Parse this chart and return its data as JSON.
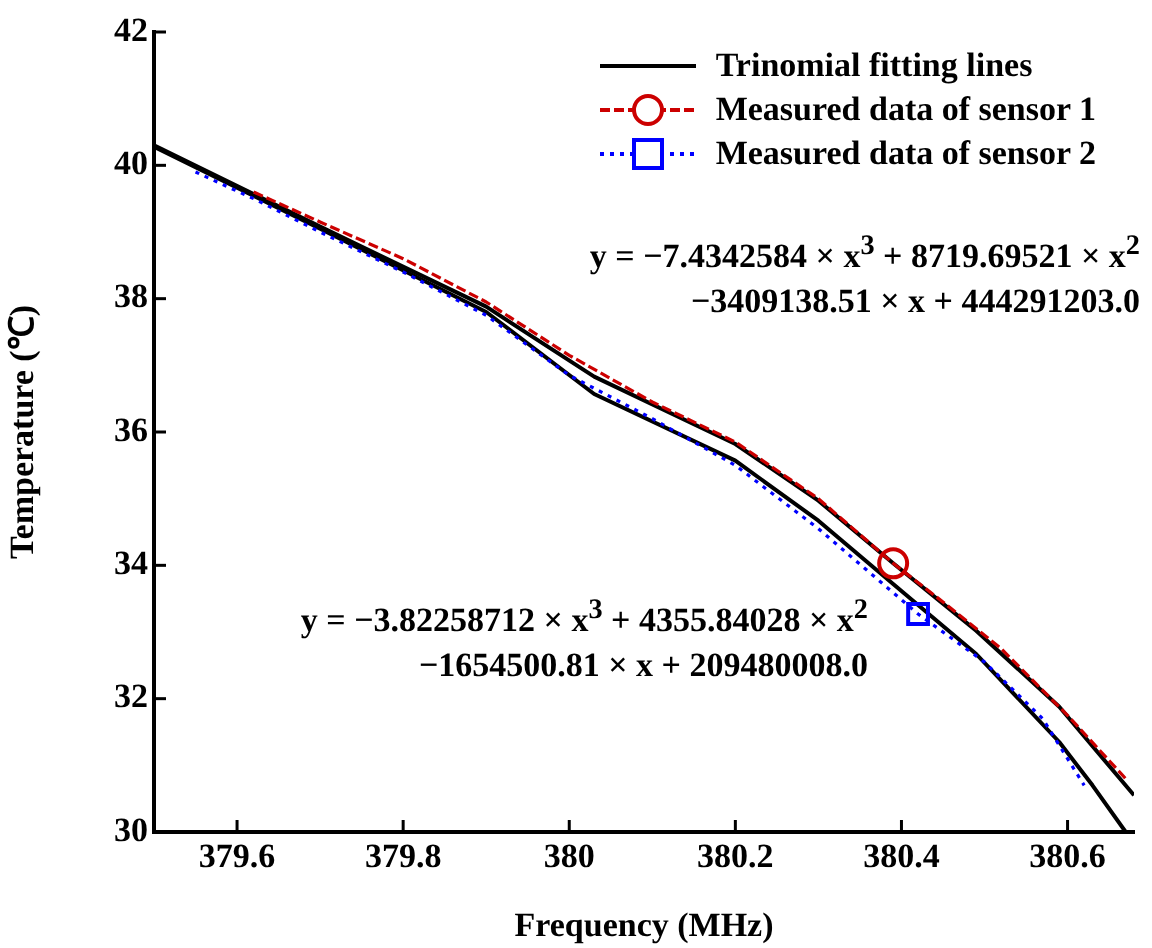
{
  "chart_data": {
    "type": "line",
    "xlabel": "Frequency (MHz)",
    "ylabel": "Temperature (℃)",
    "xlim": [
      379.5,
      380.68
    ],
    "xticks": [
      379.6,
      379.8,
      380,
      380.2,
      380.4,
      380.6
    ],
    "ylim": [
      30,
      42
    ],
    "yticks": [
      30,
      32,
      34,
      36,
      38,
      40,
      42
    ],
    "grid": false,
    "legend": "top right",
    "annotations": [
      "y = −7.4342584 × x$^{3}$ + 8719.69521 × x$^{2}$\n−3409138.51 × x + 444291203.0",
      "y = −3.82258712 × x$^{3}$ + 4355.84028 × x$^{2}$\n−1654500.81 × x + 209480008.0"
    ],
    "series": [
      {
        "name": "Trinomial fitting lines",
        "color": "#000000",
        "line_style": "solid",
        "x": [
          379.5,
          379.7,
          379.9,
          380.03,
          380.2,
          380.3,
          380.39,
          380.49,
          380.59,
          380.68
        ],
        "values": [
          40.3,
          39.08,
          37.88,
          36.83,
          35.82,
          34.97,
          34.03,
          33.02,
          31.88,
          30.55
        ]
      },
      {
        "color": "#000000",
        "line_style": "solid",
        "x": [
          379.5,
          379.7,
          379.9,
          380.03,
          380.2,
          380.3,
          380.39,
          380.49,
          380.59,
          380.63,
          380.67
        ],
        "values": [
          40.28,
          39.05,
          37.8,
          36.57,
          35.57,
          34.67,
          33.72,
          32.67,
          31.35,
          30.7,
          30.0
        ]
      },
      {
        "name": "Measured data of sensor 1",
        "color": "#cc0000",
        "line_style": "dashed",
        "x": [
          379.62,
          379.7,
          379.8,
          379.9,
          380.0,
          380.1,
          380.2,
          380.3,
          380.39,
          380.45,
          380.52,
          380.6,
          380.67
        ],
        "values": [
          39.6,
          39.15,
          38.6,
          37.95,
          37.15,
          36.45,
          35.85,
          35.0,
          34.03,
          33.45,
          32.75,
          31.75,
          30.8
        ]
      },
      {
        "name": "Measured data of sensor 2",
        "color": "#0000ff",
        "line_style": "dotted",
        "x": [
          379.55,
          379.62,
          379.7,
          379.8,
          379.9,
          380.0,
          380.1,
          380.2,
          380.3,
          380.42,
          380.5,
          380.57,
          380.62
        ],
        "values": [
          39.9,
          39.5,
          39.0,
          38.4,
          37.75,
          36.85,
          36.2,
          35.5,
          34.55,
          33.27,
          32.55,
          31.7,
          30.7
        ]
      },
      {
        "type": "scatter",
        "color": "#cc0000",
        "marker": "circle",
        "x": [
          380.39
        ],
        "values": [
          34.03
        ]
      },
      {
        "type": "scatter",
        "color": "#0000ff",
        "marker": "square",
        "x": [
          380.42
        ],
        "values": [
          33.27
        ]
      }
    ]
  }
}
